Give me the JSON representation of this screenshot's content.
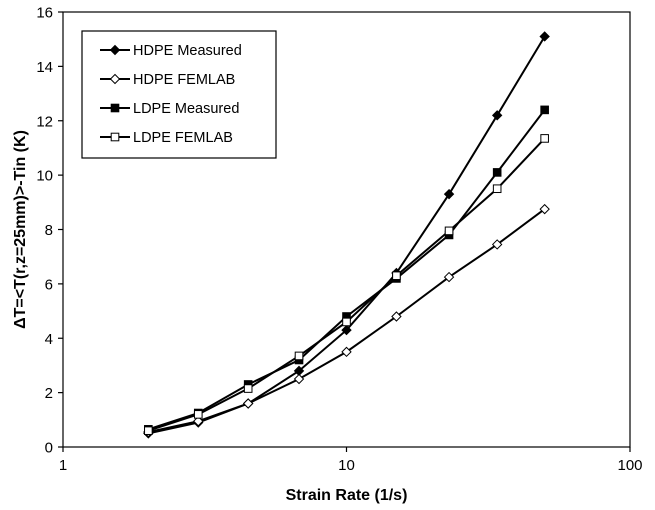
{
  "chart_data": {
    "type": "line",
    "title": "",
    "xlabel": "Strain Rate (1/s)",
    "ylabel": "ΔT=<T(r,z=25mm)>-Tin (K)",
    "xscale": "log",
    "xlim": [
      1,
      100
    ],
    "ylim": [
      0,
      16
    ],
    "x_ticks": [
      1,
      10,
      100
    ],
    "x_tick_labels": [
      "1",
      "10",
      "100"
    ],
    "y_ticks": [
      0,
      2,
      4,
      6,
      8,
      10,
      12,
      14,
      16
    ],
    "y_tick_labels": [
      "0",
      "2",
      "4",
      "6",
      "8",
      "10",
      "12",
      "14",
      "16"
    ],
    "grid": false,
    "legend_position": "top-left",
    "series": [
      {
        "name": "HDPE Measured",
        "marker": "diamond-filled",
        "x": [
          2,
          3,
          4.5,
          6.8,
          10,
          15,
          23,
          34,
          50
        ],
        "y": [
          0.5,
          0.9,
          1.6,
          2.8,
          4.3,
          6.4,
          9.3,
          12.2,
          15.1
        ]
      },
      {
        "name": "HDPE FEMLAB",
        "marker": "diamond-open",
        "x": [
          2,
          3,
          4.5,
          6.8,
          10,
          15,
          23,
          34,
          50
        ],
        "y": [
          0.55,
          0.95,
          1.6,
          2.5,
          3.5,
          4.8,
          6.25,
          7.45,
          8.75
        ]
      },
      {
        "name": "LDPE Measured",
        "marker": "square-filled",
        "x": [
          2,
          3,
          4.5,
          6.8,
          10,
          15,
          23,
          34,
          50
        ],
        "y": [
          0.65,
          1.25,
          2.3,
          3.2,
          4.8,
          6.2,
          7.8,
          10.1,
          12.4
        ]
      },
      {
        "name": "LDPE FEMLAB",
        "marker": "square-open",
        "x": [
          2,
          3,
          4.5,
          6.8,
          10,
          15,
          23,
          34,
          50
        ],
        "y": [
          0.6,
          1.2,
          2.15,
          3.35,
          4.6,
          6.3,
          7.95,
          9.5,
          11.35
        ]
      }
    ]
  }
}
